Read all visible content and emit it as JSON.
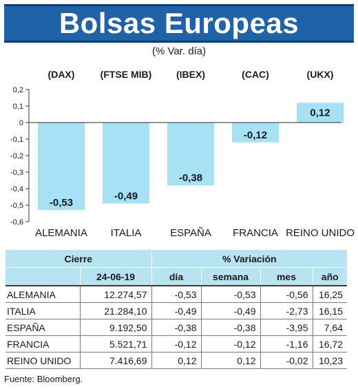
{
  "title": "Bolsas Europeas",
  "subtitle": "(% Var. día)",
  "chart_data": {
    "type": "bar",
    "indices": [
      "(DAX)",
      "(FTSE MIB)",
      "(IBEX)",
      "(CAC)",
      "(UKX)"
    ],
    "categories": [
      "ALEMANIA",
      "ITALIA",
      "ESPAÑA",
      "FRANCIA",
      "REINO UNIDO"
    ],
    "values": [
      -0.53,
      -0.49,
      -0.38,
      -0.12,
      0.12
    ],
    "value_labels": [
      "-0,53",
      "-0,49",
      "-0,38",
      "-0,12",
      "0,12"
    ],
    "yticks": [
      0.2,
      0.1,
      0,
      -0.1,
      -0.2,
      -0.3,
      -0.4,
      -0.5,
      -0.6
    ],
    "ytick_labels": [
      "0,2",
      "0,1",
      "0",
      "-0,1",
      "-0,2",
      "-0,3",
      "-0,4",
      "-0,5",
      "-0,6"
    ],
    "ylim": [
      -0.6,
      0.2
    ],
    "bar_color": "#a6e1f6"
  },
  "table": {
    "header_cierre": "Cierre",
    "header_variacion": "% Variación",
    "header_date": "24-06-19",
    "header_dia": "día",
    "header_semana": "semana",
    "header_mes": "mes",
    "header_ano": "año",
    "rows": [
      {
        "pais": "ALEMANIA",
        "cierre": "12.274,57",
        "dia": "-0,53",
        "semana": "-0,53",
        "mes": "-0,56",
        "ano": "16,25"
      },
      {
        "pais": "ITALIA",
        "cierre": "21.284,10",
        "dia": "-0,49",
        "semana": "-0,49",
        "mes": "-2,73",
        "ano": "16,15"
      },
      {
        "pais": "ESPAÑA",
        "cierre": "9.192,50",
        "dia": "-0,38",
        "semana": "-0,38",
        "mes": "-3,95",
        "ano": "7,64"
      },
      {
        "pais": "FRANCIA",
        "cierre": "5.521,71",
        "dia": "-0,12",
        "semana": "-0,12",
        "mes": "-1,16",
        "ano": "16,72"
      },
      {
        "pais": "REINO UNIDO",
        "cierre": "7.416,69",
        "dia": "0,12",
        "semana": "0,12",
        "mes": "-0,02",
        "ano": "10,23"
      }
    ]
  },
  "source": "Fuente: Bloomberg."
}
